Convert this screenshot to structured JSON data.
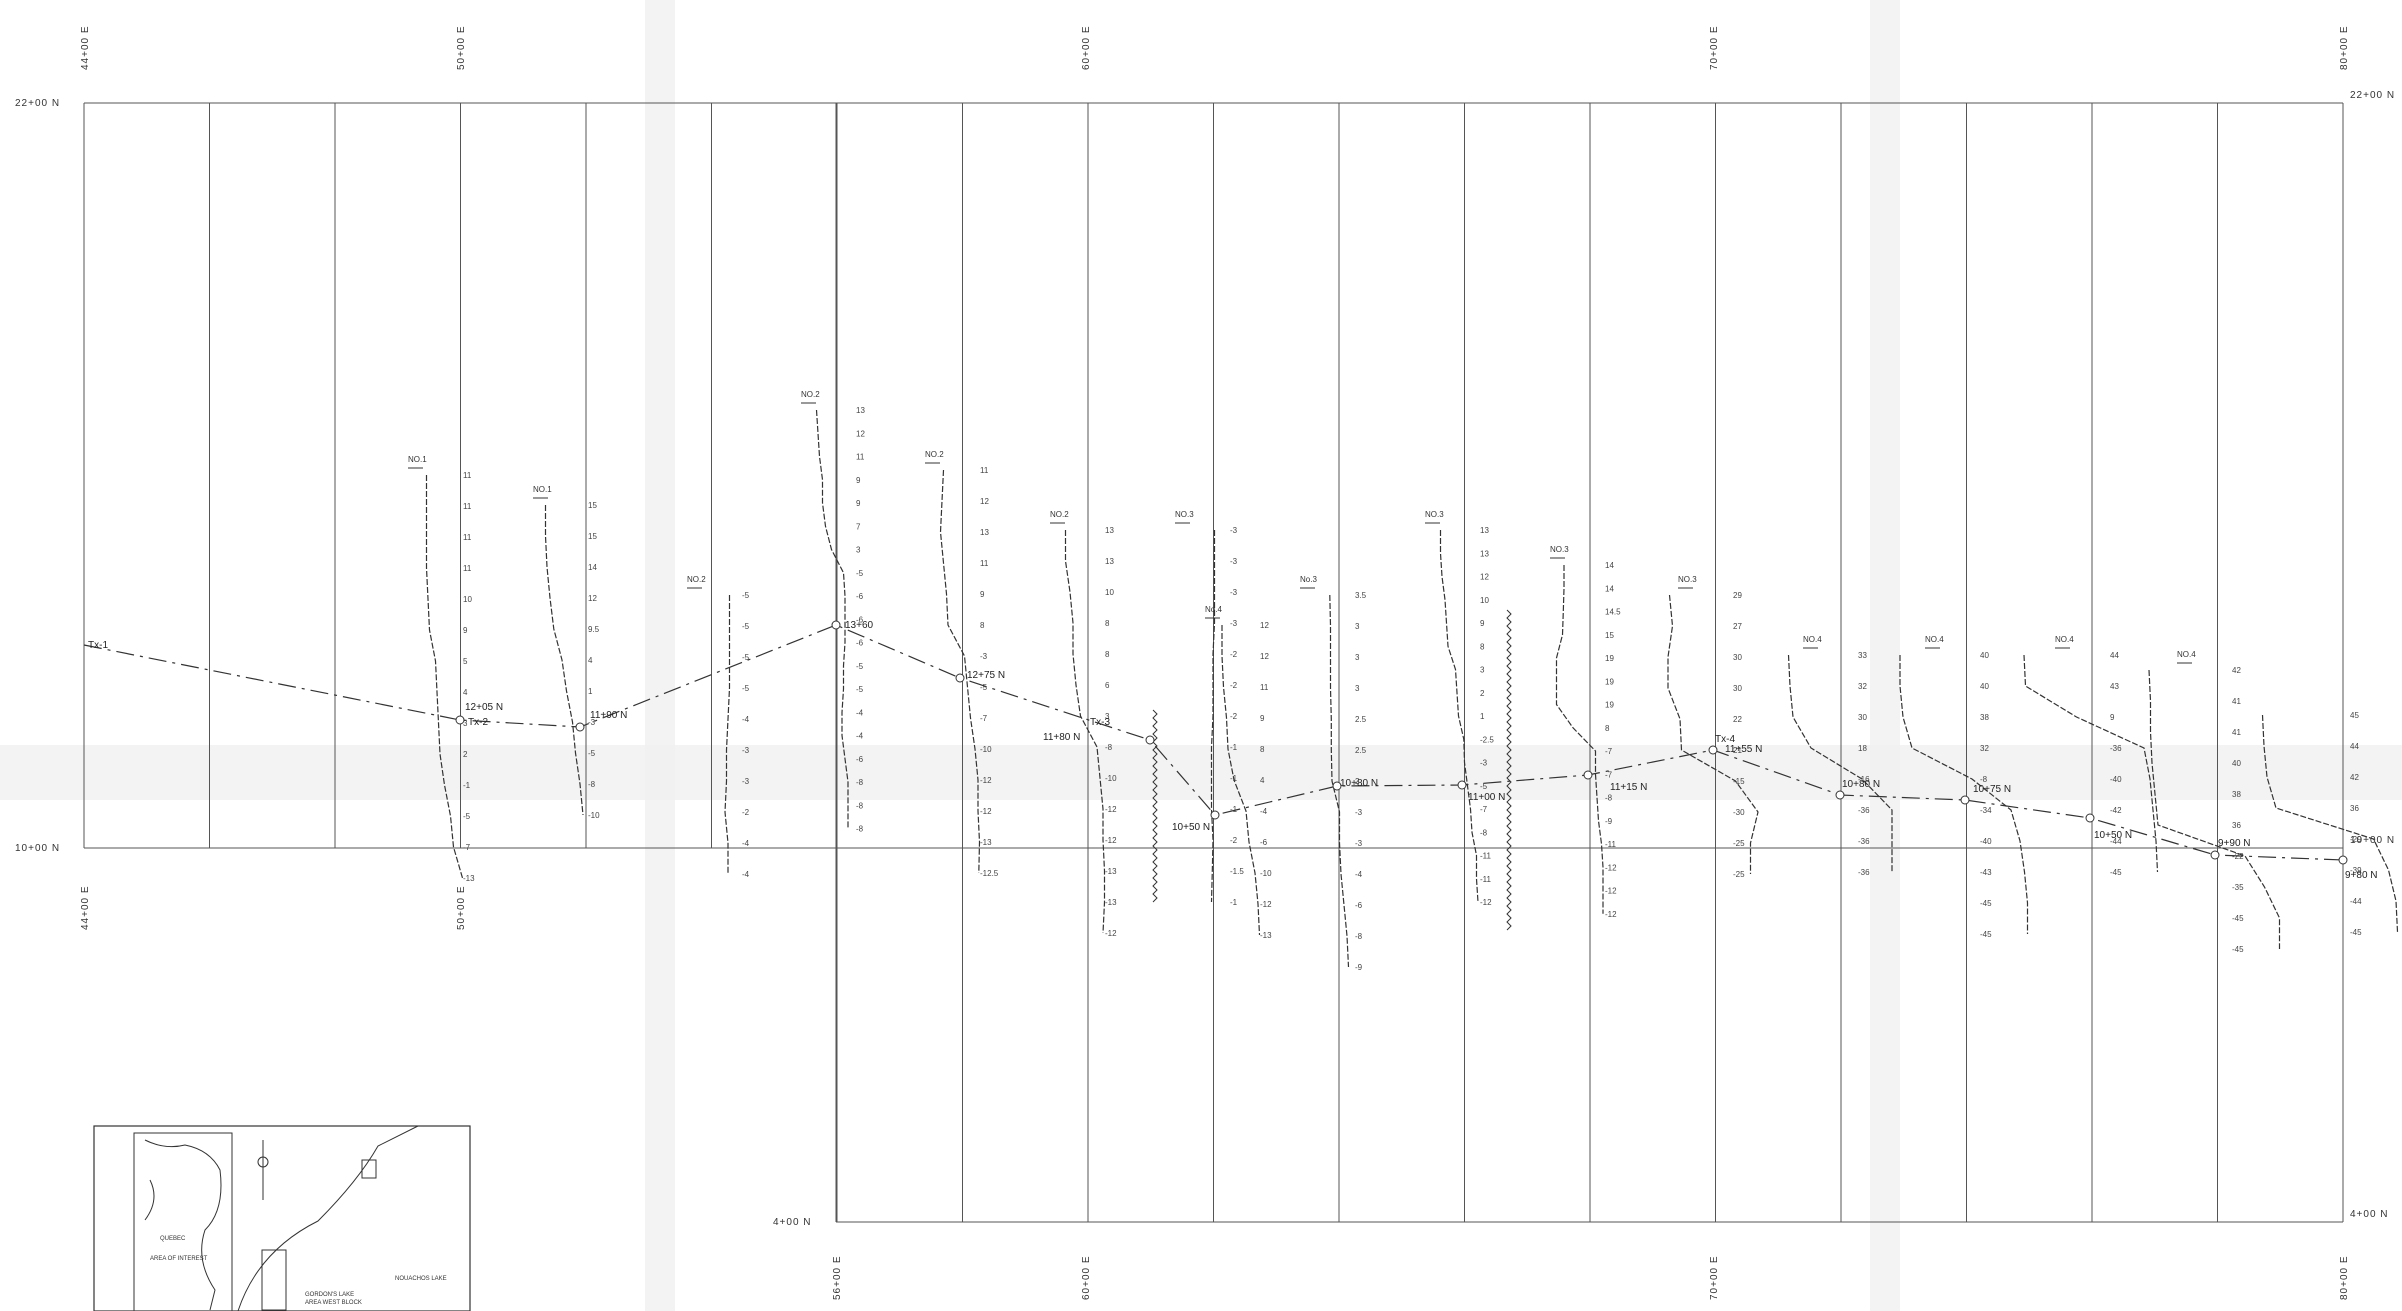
{
  "grid": {
    "top_labels": [
      "44+00 E",
      "50+00 E",
      "60+00 E",
      "70+00 E",
      "80+00 E"
    ],
    "bottom_labels": [
      "44+00 E",
      "50+00 E",
      "56+00 E",
      "60+00 E",
      "70+00 E",
      "80+00 E"
    ],
    "north_labels": [
      "22+00 N",
      "10+00 N",
      "4+00 N"
    ],
    "right_labels": [
      "22+00 N",
      "10+00 N",
      "4+00 N"
    ]
  },
  "traverse": {
    "labels": [
      "Tx-1",
      "Tx-2",
      "Tx-3",
      "Tx-4"
    ],
    "stations": [
      "12+05 N",
      "11+90 N",
      "13+60",
      "12+75 N",
      "11+80 N",
      "10+50 N",
      "10+80 N",
      "11+00 N",
      "11+15 N",
      "11+55 N",
      "10+80 N",
      "10+75 N",
      "10+50 N",
      "9+90 N",
      "9+80 N"
    ]
  },
  "profiles": [
    {
      "tag": "NO.1",
      "values": [
        "11",
        "11",
        "11",
        "11",
        "10",
        "9",
        "5",
        "4",
        "3",
        "2",
        "-1",
        "-5",
        "-7",
        "-13"
      ]
    },
    {
      "tag": "NO.1",
      "values": [
        "15",
        "15",
        "14",
        "12",
        "9.5",
        "4",
        "1",
        "-3",
        "-5",
        "-8",
        "-10"
      ]
    },
    {
      "tag": "NO.2",
      "values": [
        "-5",
        "-5",
        "-5",
        "-5",
        "-4",
        "-3",
        "-3",
        "-2",
        "-4",
        "-4"
      ]
    },
    {
      "tag": "NO.2",
      "values": [
        "13",
        "12",
        "11",
        "9",
        "9",
        "7",
        "3",
        "-5",
        "-6",
        "-6",
        "-6",
        "-5",
        "-5",
        "-4",
        "-4",
        "-6",
        "-8",
        "-8",
        "-8"
      ]
    },
    {
      "tag": "NO.2",
      "values": [
        "11",
        "12",
        "13",
        "11",
        "9",
        "8",
        "-3",
        "-5",
        "-7",
        "-10",
        "-12",
        "-12",
        "-13",
        "-12.5"
      ]
    },
    {
      "tag": "NO.2",
      "values": [
        "13",
        "13",
        "10",
        "8",
        "8",
        "6",
        "3",
        "-8",
        "-10",
        "-12",
        "-12",
        "-13",
        "-13",
        "-12"
      ]
    },
    {
      "tag": "NO.3",
      "values": [
        "-3",
        "-3",
        "-3",
        "-3",
        "-2",
        "-2",
        "-2",
        "-1",
        "-1",
        "-1",
        "-2",
        "-1.5",
        "-1"
      ]
    },
    {
      "tag": "No.4",
      "values": [
        "12",
        "12",
        "11",
        "9",
        "8",
        "4",
        "-4",
        "-6",
        "-10",
        "-12",
        "-13"
      ]
    },
    {
      "tag": "No.3",
      "values": [
        "3.5",
        "3",
        "3",
        "3",
        "2.5",
        "2.5",
        "2",
        "-3",
        "-3",
        "-4",
        "-6",
        "-8",
        "-9"
      ]
    },
    {
      "tag": "NO.3",
      "values": [
        "13",
        "13",
        "12",
        "10",
        "9",
        "8",
        "3",
        "2",
        "1",
        "-2.5",
        "-3",
        "-5",
        "-7",
        "-8",
        "-11",
        "-11",
        "-12"
      ]
    },
    {
      "tag": "NO.3",
      "values": [
        "14",
        "14",
        "14.5",
        "15",
        "19",
        "19",
        "19",
        "8",
        "-7",
        "-7",
        "-8",
        "-9",
        "-11",
        "-12",
        "-12",
        "-12"
      ]
    },
    {
      "tag": "NO.3",
      "values": [
        "29",
        "27",
        "30",
        "30",
        "22",
        "21",
        "-15",
        "-30",
        "-25",
        "-25"
      ]
    },
    {
      "tag": "NO.4",
      "values": [
        "33",
        "32",
        "30",
        "18",
        "-16",
        "-36",
        "-36",
        "-36"
      ]
    },
    {
      "tag": "NO.4",
      "values": [
        "40",
        "40",
        "38",
        "32",
        "-8",
        "-34",
        "-40",
        "-43",
        "-45",
        "-45"
      ]
    },
    {
      "tag": "NO.4",
      "values": [
        "44",
        "43",
        "9",
        "-36",
        "-40",
        "-42",
        "-44",
        "-45"
      ]
    },
    {
      "tag": "NO.4",
      "values": [
        "42",
        "41",
        "41",
        "40",
        "38",
        "36",
        "-22",
        "-35",
        "-45",
        "-45"
      ]
    },
    {
      "tag": "",
      "values": [
        "45",
        "44",
        "42",
        "36",
        "-29",
        "-39",
        "-44",
        "-45"
      ]
    }
  ],
  "inset": {
    "labels": [
      "QUEBEC",
      "AREA OF INTEREST",
      "GORDON'S LAKE",
      "AREA WEST BLOCK",
      "NOUACHOS LAKE"
    ]
  }
}
